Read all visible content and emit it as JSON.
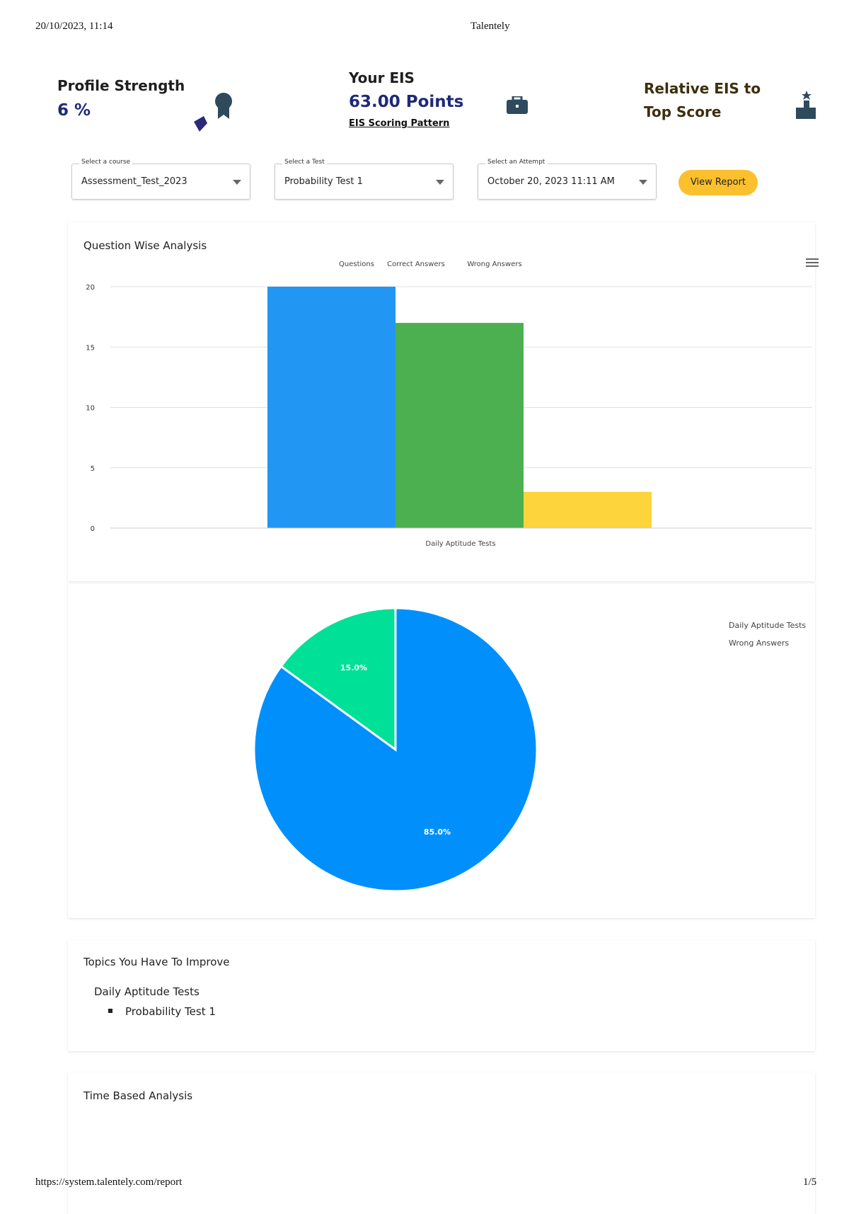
{
  "print_header": {
    "datetime": "20/10/2023, 11:14",
    "title": "Talentely"
  },
  "stats": {
    "profile": {
      "label": "Profile Strength",
      "value": "6 %"
    },
    "eis": {
      "label": "Your EIS",
      "value": "63.00 Points",
      "link": "EIS Scoring Pattern"
    },
    "relative": {
      "label_line1": "Relative EIS to",
      "label_line2": "Top Score"
    }
  },
  "filters": {
    "course": {
      "label": "Select a course",
      "value": "Assessment_Test_2023"
    },
    "test": {
      "label": "Select a Test",
      "value": "Probability Test 1"
    },
    "attempt": {
      "label": "Select an Attempt",
      "value": "October 20, 2023 11:11 AM"
    },
    "view_report": "View Report"
  },
  "chart_data": [
    {
      "type": "bar",
      "title": "Question Wise Analysis",
      "categories": [
        "Daily Aptitude Tests"
      ],
      "series": [
        {
          "name": "Questions",
          "values": [
            20
          ],
          "color": "#2196f3"
        },
        {
          "name": "Correct Answers",
          "values": [
            17
          ],
          "color": "#4caf50"
        },
        {
          "name": "Wrong Answers",
          "values": [
            3
          ],
          "color": "#fdd43c"
        }
      ],
      "yticks": [
        "0",
        "5",
        "10",
        "15",
        "20"
      ],
      "ylim": [
        0,
        20
      ],
      "grid": true,
      "legend": "top"
    },
    {
      "type": "pie",
      "slices": [
        {
          "label": "15.0%",
          "value": 15,
          "color": "#00e096"
        },
        {
          "label": "85.0%",
          "value": 85,
          "color": "#008ffb"
        }
      ],
      "legend_items": [
        "Daily Aptitude Tests",
        "Wrong Answers"
      ],
      "legend": "right"
    }
  ],
  "topics": {
    "title": "Topics You Have To Improve",
    "group": "Daily Aptitude Tests",
    "items": [
      "Probability Test 1"
    ]
  },
  "time_analysis": {
    "title": "Time Based Analysis"
  },
  "print_footer": {
    "url": "https://system.talentely.com/report",
    "page": "1/5"
  }
}
